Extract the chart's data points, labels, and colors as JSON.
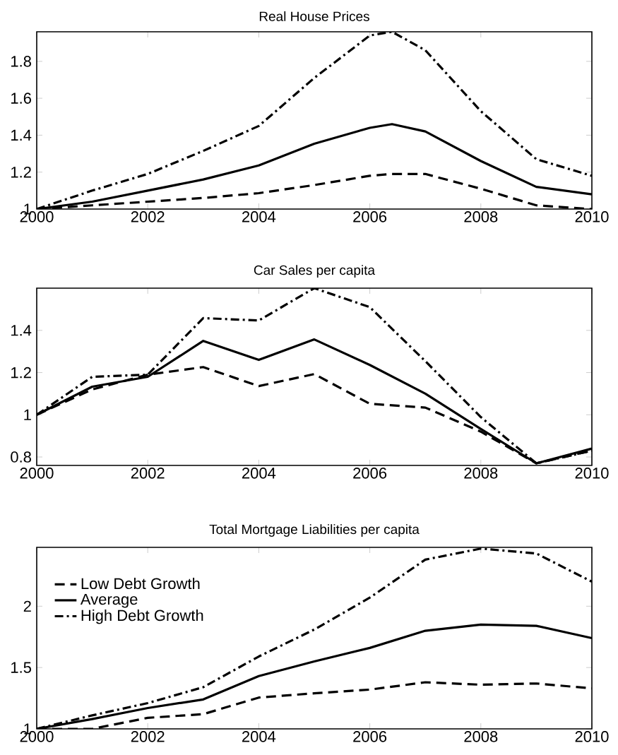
{
  "chart_data": [
    {
      "type": "line",
      "title": "Real House Prices",
      "xlim": [
        2000,
        2010
      ],
      "ylim": [
        1,
        1.96
      ],
      "xticks": [
        2000,
        2002,
        2004,
        2006,
        2008,
        2010
      ],
      "yticks": [
        1,
        1.2,
        1.4,
        1.6,
        1.8
      ],
      "x": [
        2000,
        2001,
        2002,
        2003,
        2004,
        2005,
        2006,
        2006.4,
        2007,
        2008,
        2009,
        2010
      ],
      "series": [
        {
          "color": "#000000",
          "line_style": "dashed",
          "values": [
            1.0,
            1.02,
            1.04,
            1.06,
            1.086,
            1.13,
            1.18,
            1.19,
            1.19,
            1.11,
            1.02,
            1.0
          ]
        },
        {
          "color": "#000000",
          "line_style": "solid",
          "values": [
            1.0,
            1.04,
            1.1,
            1.16,
            1.236,
            1.354,
            1.44,
            1.46,
            1.42,
            1.26,
            1.12,
            1.08
          ]
        },
        {
          "color": "#000000",
          "line_style": "dashdot",
          "values": [
            1.0,
            1.1,
            1.19,
            1.315,
            1.45,
            1.71,
            1.94,
            1.96,
            1.86,
            1.53,
            1.27,
            1.18
          ]
        }
      ]
    },
    {
      "type": "line",
      "title": "Car Sales per capita",
      "xlim": [
        2000,
        2010
      ],
      "ylim": [
        0.76,
        1.6
      ],
      "xticks": [
        2000,
        2002,
        2004,
        2006,
        2008,
        2010
      ],
      "yticks": [
        0.8,
        1,
        1.2,
        1.4
      ],
      "x": [
        2000,
        2001,
        2002,
        2003,
        2004,
        2005,
        2006,
        2007,
        2008,
        2009,
        2010
      ],
      "series": [
        {
          "color": "#000000",
          "line_style": "dashed",
          "values": [
            1.0,
            1.12,
            1.19,
            1.226,
            1.136,
            1.193,
            1.052,
            1.034,
            0.92,
            0.77,
            0.83
          ]
        },
        {
          "color": "#000000",
          "line_style": "solid",
          "values": [
            1.0,
            1.133,
            1.18,
            1.35,
            1.26,
            1.357,
            1.236,
            1.1,
            0.933,
            0.77,
            0.84
          ]
        },
        {
          "color": "#000000",
          "line_style": "dashdot",
          "values": [
            1.0,
            1.18,
            1.19,
            1.458,
            1.447,
            1.6,
            1.51,
            1.254,
            0.989,
            0.77,
            0.83
          ]
        }
      ]
    },
    {
      "type": "line",
      "title": "Total Mortgage Liabilities per capita",
      "xlim": [
        2000,
        2010
      ],
      "ylim": [
        1,
        2.48
      ],
      "xticks": [
        2000,
        2002,
        2004,
        2006,
        2008,
        2010
      ],
      "yticks": [
        1,
        1.5,
        2
      ],
      "legend": "top left",
      "x": [
        2000,
        2001,
        2002,
        2003,
        2004,
        2005,
        2006,
        2007,
        2008,
        2009,
        2010
      ],
      "series": [
        {
          "name": "Low Debt Growth",
          "color": "#000000",
          "line_style": "dashed",
          "values": [
            1.0,
            1.0,
            1.09,
            1.12,
            1.255,
            1.29,
            1.32,
            1.38,
            1.36,
            1.37,
            1.33
          ]
        },
        {
          "name": "Average",
          "color": "#000000",
          "line_style": "solid",
          "values": [
            1.0,
            1.08,
            1.17,
            1.24,
            1.43,
            1.55,
            1.66,
            1.8,
            1.85,
            1.84,
            1.74
          ]
        },
        {
          "name": "High Debt Growth",
          "color": "#000000",
          "line_style": "dashdot",
          "values": [
            1.0,
            1.11,
            1.21,
            1.34,
            1.59,
            1.81,
            2.07,
            2.38,
            2.47,
            2.43,
            2.2
          ]
        }
      ]
    }
  ]
}
